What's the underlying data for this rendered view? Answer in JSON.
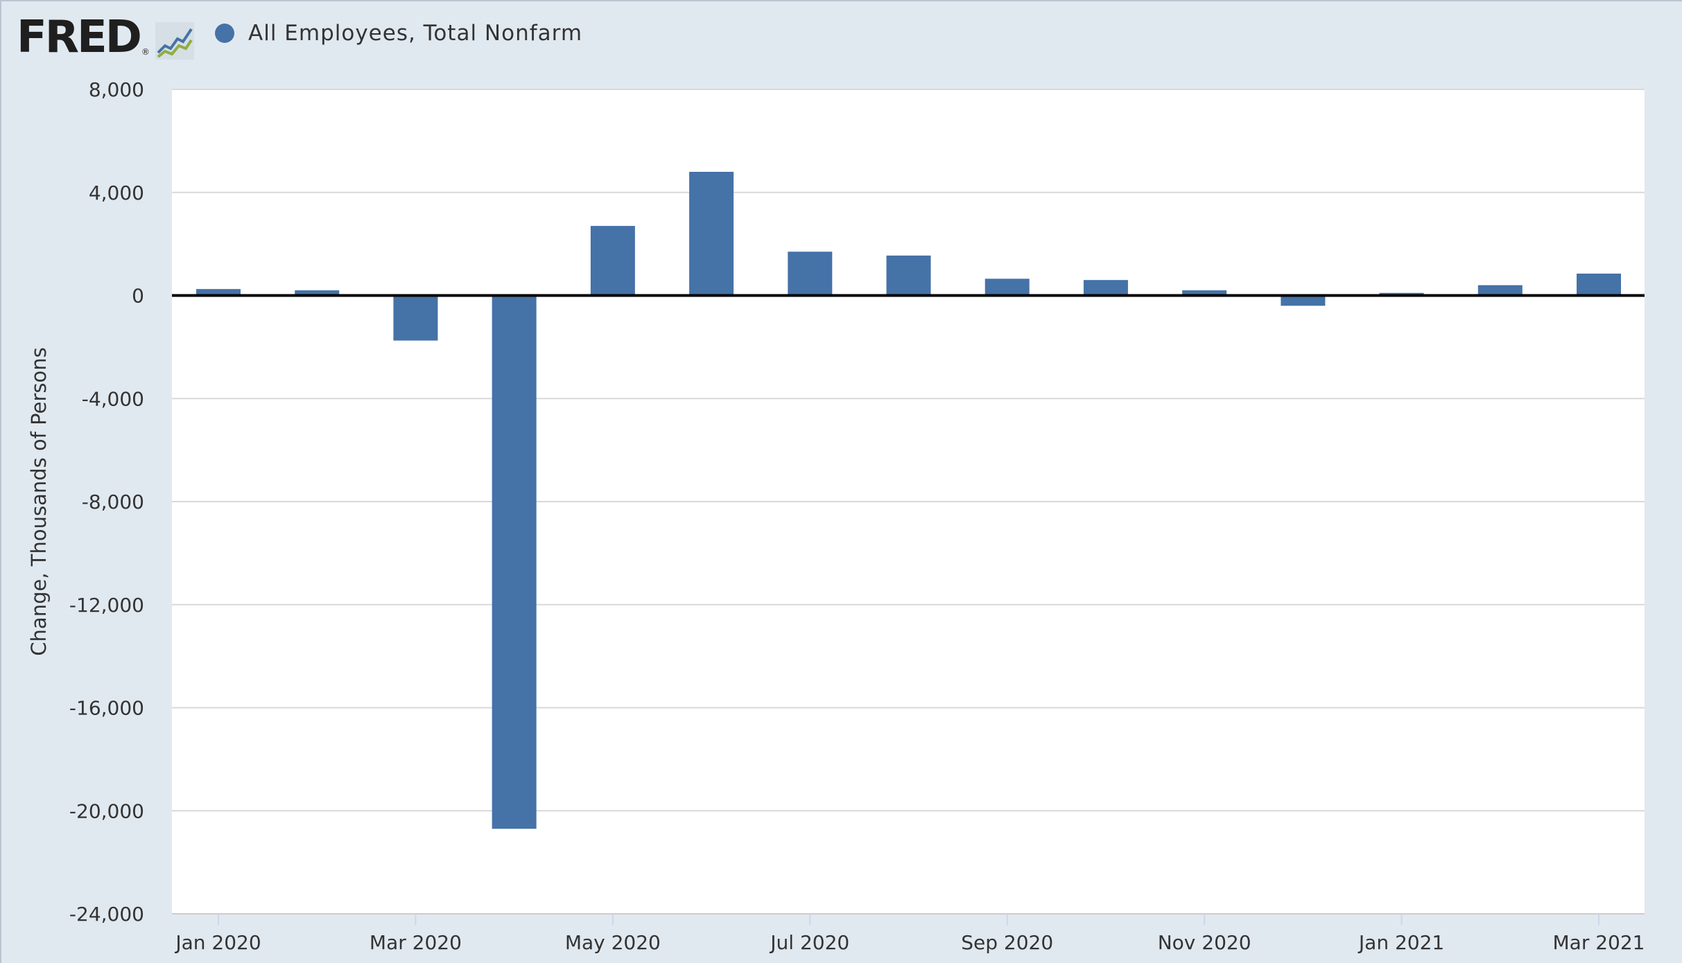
{
  "brand": {
    "logo_text": "FRED",
    "registered_mark": "®",
    "icon": "chart-line-icon"
  },
  "legend": {
    "series_label": "All Employees, Total Nonfarm",
    "series_color": "#4572a7"
  },
  "chart_data": {
    "type": "bar",
    "title": "",
    "ylabel": "Change, Thousands of Persons",
    "xlabel": "",
    "ylim": [
      -24000,
      8000
    ],
    "yticks": [
      8000,
      4000,
      0,
      -4000,
      -8000,
      -12000,
      -16000,
      -20000,
      -24000
    ],
    "ytick_labels": [
      "8,000",
      "4,000",
      "0",
      "-4,000",
      "-8,000",
      "-12,000",
      "-16,000",
      "-20,000",
      "-24,000"
    ],
    "grid": true,
    "legend_position": "top-left",
    "categories": [
      "2020-01",
      "2020-02",
      "2020-03",
      "2020-04",
      "2020-05",
      "2020-06",
      "2020-07",
      "2020-08",
      "2020-09",
      "2020-10",
      "2020-11",
      "2020-12",
      "2021-01",
      "2021-02",
      "2021-03"
    ],
    "xtick_labels": [
      {
        "category": "2020-01",
        "label": "Jan 2020"
      },
      {
        "category": "2020-03",
        "label": "Mar 2020"
      },
      {
        "category": "2020-05",
        "label": "May 2020"
      },
      {
        "category": "2020-07",
        "label": "Jul 2020"
      },
      {
        "category": "2020-09",
        "label": "Sep 2020"
      },
      {
        "category": "2020-11",
        "label": "Nov 2020"
      },
      {
        "category": "2021-01",
        "label": "Jan 2021"
      },
      {
        "category": "2021-03",
        "label": "Mar 2021"
      }
    ],
    "series": [
      {
        "name": "All Employees, Total Nonfarm",
        "color": "#4572a7",
        "values": [
          250,
          200,
          -1750,
          -20700,
          2700,
          4800,
          1700,
          1550,
          650,
          600,
          200,
          -400,
          100,
          400,
          850
        ]
      }
    ]
  }
}
